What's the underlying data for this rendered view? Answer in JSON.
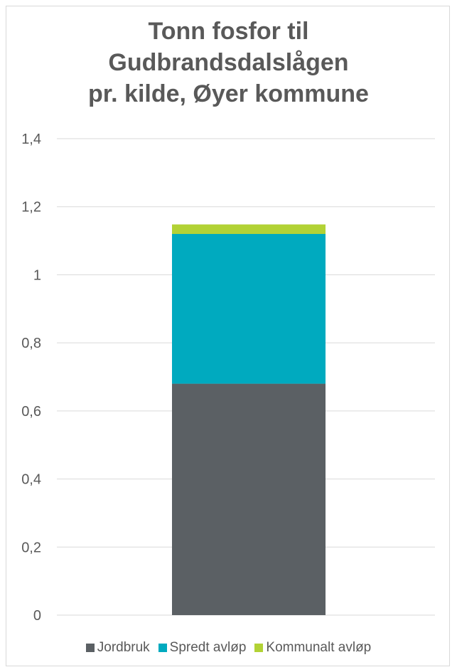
{
  "chart_data": {
    "type": "bar",
    "stacked": true,
    "title": [
      "Tonn fosfor til",
      "Gudbrandsdalslågen",
      "pr. kilde, Øyer kommune"
    ],
    "categories": [
      ""
    ],
    "series": [
      {
        "name": "Jordbruk",
        "values": [
          0.68
        ],
        "color": "#5b6064"
      },
      {
        "name": "Spredt avløp",
        "values": [
          0.44
        ],
        "color": "#00aabf"
      },
      {
        "name": "Kommunalt avløp",
        "values": [
          0.028
        ],
        "color": "#b2d235"
      }
    ],
    "ylim": [
      0,
      1.4
    ],
    "yticks": [
      "0",
      "0,2",
      "0,4",
      "0,6",
      "0,8",
      "1",
      "1,2",
      "1,4"
    ],
    "grid": true,
    "gridColor": "#d9d9d9",
    "legend": "bottom"
  }
}
